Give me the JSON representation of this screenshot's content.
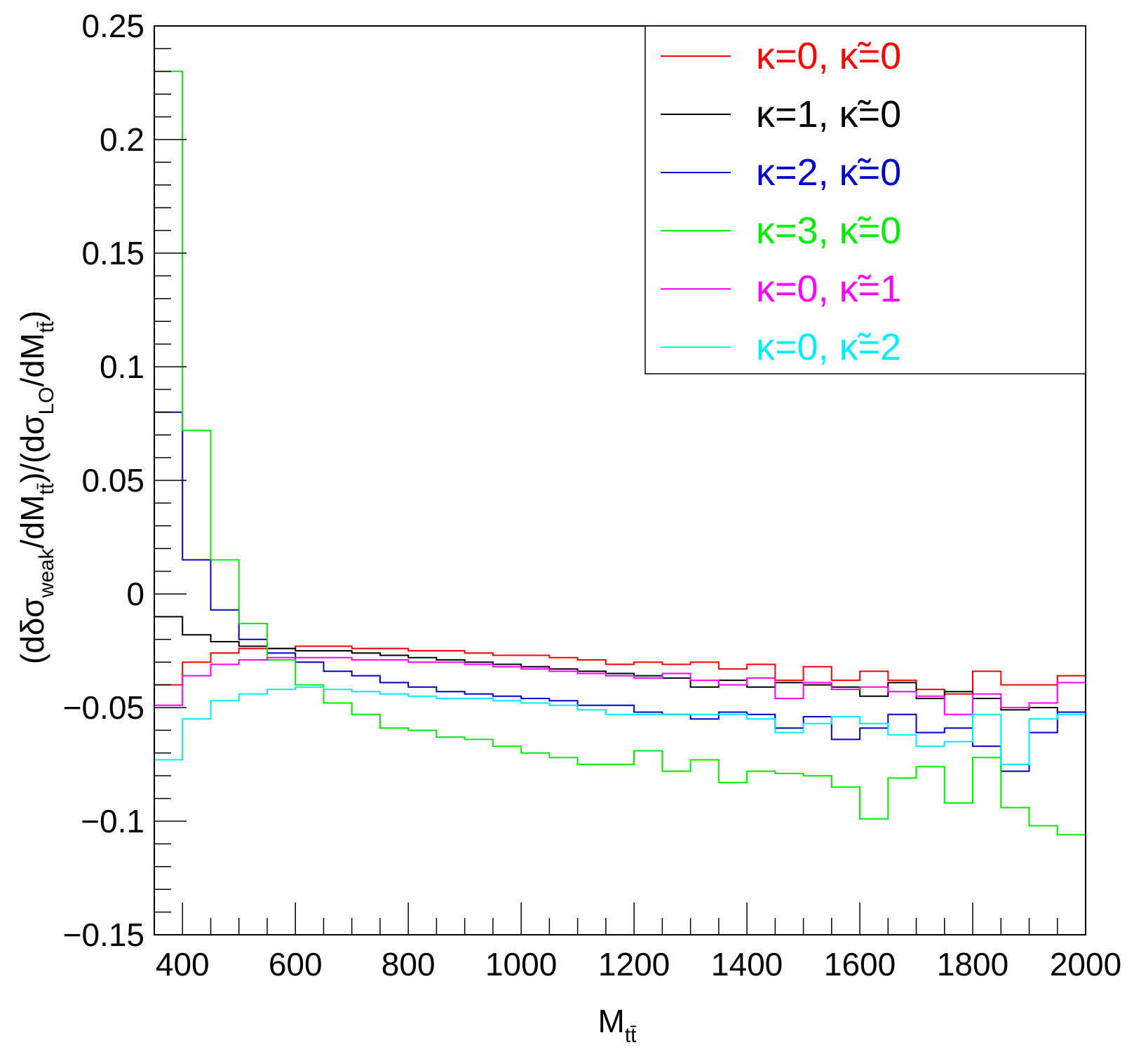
{
  "chart_data": {
    "type": "line",
    "style": "step-histogram",
    "xlabel": {
      "main": "M",
      "sub": "tt̄"
    },
    "ylabel": {
      "parts": [
        {
          "t": "(dδσ",
          "sub": false
        },
        {
          "t": "weak",
          "sub": true
        },
        {
          "t": "/dM",
          "sub": false
        },
        {
          "t": "tt̄",
          "sub": true
        },
        {
          "t": ")/(dσ",
          "sub": false
        },
        {
          "t": "LO",
          "sub": true
        },
        {
          "t": "/dM",
          "sub": false
        },
        {
          "t": "tt̄",
          "sub": true
        },
        {
          "t": ")",
          "sub": false
        }
      ]
    },
    "xlim": [
      350,
      2000
    ],
    "ylim": [
      -0.15,
      0.25
    ],
    "x_ticks": [
      400,
      600,
      800,
      1000,
      1200,
      1400,
      1600,
      1800,
      2000
    ],
    "x_tick_labels": [
      "400",
      "600",
      "800",
      "1000",
      "1200",
      "1400",
      "1600",
      "1800",
      "2000"
    ],
    "y_ticks": [
      -0.15,
      -0.1,
      -0.05,
      0,
      0.05,
      0.1,
      0.15,
      0.2,
      0.25
    ],
    "y_tick_labels": [
      "−0.15",
      "−0.1",
      "−0.05",
      "0",
      "0.05",
      "0.1",
      "0.15",
      "0.2",
      "0.25"
    ],
    "bin_edges": [
      350,
      400,
      450,
      500,
      550,
      600,
      650,
      700,
      750,
      800,
      850,
      900,
      950,
      1000,
      1050,
      1100,
      1150,
      1200,
      1250,
      1300,
      1350,
      1400,
      1450,
      1500,
      1550,
      1600,
      1650,
      1700,
      1750,
      1800,
      1850,
      1900,
      1950,
      2000
    ],
    "legend_position": "top-right",
    "grid": false,
    "series": [
      {
        "name": "κ=0, κ̃=0",
        "color": "#ff0000",
        "values": [
          -0.04,
          -0.03,
          -0.026,
          -0.024,
          -0.024,
          -0.023,
          -0.023,
          -0.024,
          -0.024,
          -0.025,
          -0.025,
          -0.026,
          -0.027,
          -0.027,
          -0.028,
          -0.029,
          -0.031,
          -0.03,
          -0.031,
          -0.03,
          -0.033,
          -0.031,
          -0.038,
          -0.032,
          -0.038,
          -0.034,
          -0.038,
          -0.042,
          -0.044,
          -0.034,
          -0.04,
          -0.04,
          -0.036
        ]
      },
      {
        "name": "κ=1, κ̃=0",
        "color": "#000000",
        "values": [
          -0.01,
          -0.018,
          -0.021,
          -0.023,
          -0.024,
          -0.025,
          -0.025,
          -0.026,
          -0.027,
          -0.028,
          -0.029,
          -0.03,
          -0.031,
          -0.032,
          -0.033,
          -0.034,
          -0.035,
          -0.036,
          -0.037,
          -0.041,
          -0.038,
          -0.041,
          -0.039,
          -0.04,
          -0.041,
          -0.045,
          -0.039,
          -0.046,
          -0.043,
          -0.046,
          -0.051,
          -0.05,
          -0.052
        ]
      },
      {
        "name": "κ=2, κ̃=0",
        "color": "#0000cc",
        "values": [
          0.08,
          0.015,
          -0.007,
          -0.02,
          -0.026,
          -0.03,
          -0.034,
          -0.036,
          -0.039,
          -0.041,
          -0.043,
          -0.044,
          -0.045,
          -0.046,
          -0.047,
          -0.049,
          -0.049,
          -0.052,
          -0.053,
          -0.055,
          -0.052,
          -0.053,
          -0.059,
          -0.054,
          -0.064,
          -0.059,
          -0.053,
          -0.061,
          -0.059,
          -0.067,
          -0.078,
          -0.061,
          -0.052
        ]
      },
      {
        "name": "κ=3, κ̃=0",
        "color": "#00ee00",
        "values": [
          0.23,
          0.072,
          0.015,
          -0.013,
          -0.029,
          -0.04,
          -0.048,
          -0.053,
          -0.059,
          -0.06,
          -0.063,
          -0.064,
          -0.067,
          -0.07,
          -0.072,
          -0.075,
          -0.075,
          -0.069,
          -0.078,
          -0.073,
          -0.083,
          -0.078,
          -0.079,
          -0.08,
          -0.085,
          -0.099,
          -0.081,
          -0.076,
          -0.092,
          -0.072,
          -0.094,
          -0.102,
          -0.106
        ]
      },
      {
        "name": "κ=0, κ̃=1",
        "color": "#ff00ff",
        "values": [
          -0.049,
          -0.036,
          -0.031,
          -0.029,
          -0.028,
          -0.028,
          -0.028,
          -0.029,
          -0.029,
          -0.03,
          -0.03,
          -0.031,
          -0.032,
          -0.033,
          -0.034,
          -0.035,
          -0.036,
          -0.037,
          -0.035,
          -0.038,
          -0.04,
          -0.037,
          -0.046,
          -0.039,
          -0.042,
          -0.041,
          -0.043,
          -0.045,
          -0.053,
          -0.044,
          -0.05,
          -0.048,
          -0.039
        ]
      },
      {
        "name": "κ=0, κ̃=2",
        "color": "#00eeff",
        "values": [
          -0.073,
          -0.055,
          -0.047,
          -0.044,
          -0.042,
          -0.041,
          -0.042,
          -0.043,
          -0.044,
          -0.045,
          -0.046,
          -0.046,
          -0.047,
          -0.048,
          -0.049,
          -0.051,
          -0.053,
          -0.053,
          -0.053,
          -0.053,
          -0.053,
          -0.055,
          -0.061,
          -0.057,
          -0.054,
          -0.057,
          -0.062,
          -0.067,
          -0.065,
          -0.053,
          -0.075,
          -0.055,
          -0.053
        ]
      }
    ]
  }
}
